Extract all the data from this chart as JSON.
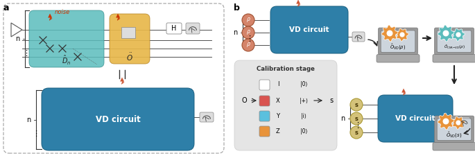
{
  "fig_width": 6.85,
  "fig_height": 2.25,
  "dpi": 100,
  "bg_color": "#ffffff",
  "panel_a_label": "a",
  "panel_b_label": "b",
  "vd_circuit_color": "#2e7fa8",
  "vd_circuit_text": "VD circuit",
  "teal_block_color": "#5bbcbc",
  "gold_block_color": "#e8b84b",
  "noise_color": "#cc3300",
  "noise_text": "noise",
  "dn_label": "$\\hat{D}_n$",
  "o_label": "$\\ddot{O}$",
  "rho_color": "#d4846a",
  "s_color": "#d4c27a",
  "calib_bg": "#e5e5e5",
  "calib_title": "Calibration stage",
  "arrow_color": "#333333",
  "gear_orange": "#e8933a",
  "gear_teal": "#5bbcbc",
  "ovd_rho_label": "$\\hat{O}_{\\mathrm{VD}}(\\rho)$",
  "ocnr_label": "$\\hat{O}_{\\mathrm{CNR\\!-\\!VD}}(\\rho)$",
  "ovd_s_label": "$\\hat{O}_{\\mathrm{VD}}(s)$",
  "calib_items": [
    {
      "color": "#ffffff",
      "letter": "I",
      "state": "|0⟩"
    },
    {
      "color": "#d9534f",
      "letter": "X",
      "state": "|+⟩"
    },
    {
      "color": "#5bc0de",
      "letter": "Y",
      "state": "|i⟩"
    },
    {
      "color": "#e8933a",
      "letter": "Z",
      "state": "|0⟩"
    }
  ]
}
